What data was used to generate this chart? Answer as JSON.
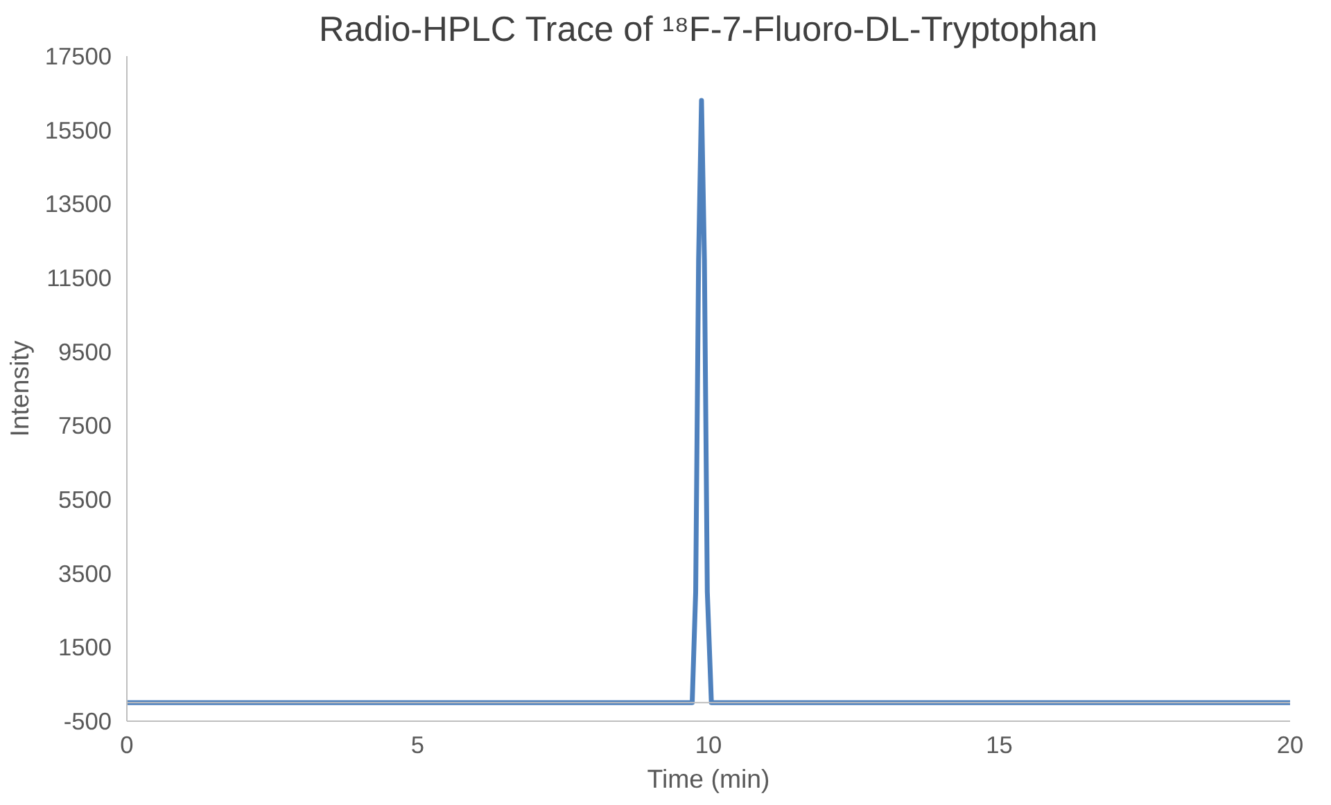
{
  "chart_data": {
    "type": "line",
    "title": "Radio-HPLC Trace of ¹⁸F-7-Fluoro-DL-Tryptophan",
    "xlabel": "Time (min)",
    "ylabel": "Intensity",
    "x": [
      0,
      9.72,
      9.78,
      9.83,
      9.88,
      9.93,
      9.98,
      10.05,
      20
    ],
    "series": [
      {
        "color": "#4f81bd",
        "values": [
          0,
          0,
          3000,
          12000,
          16300,
          12000,
          3000,
          0,
          0
        ]
      }
    ],
    "xlim": [
      0,
      20
    ],
    "xticks": [
      0,
      5,
      10,
      15,
      20
    ],
    "ylim": [
      -500,
      17500
    ],
    "yticks": [
      -500,
      1500,
      3500,
      5500,
      7500,
      9500,
      11500,
      13500,
      15500,
      17500
    ],
    "grid": false,
    "marker": "none",
    "line_style": "solid"
  }
}
